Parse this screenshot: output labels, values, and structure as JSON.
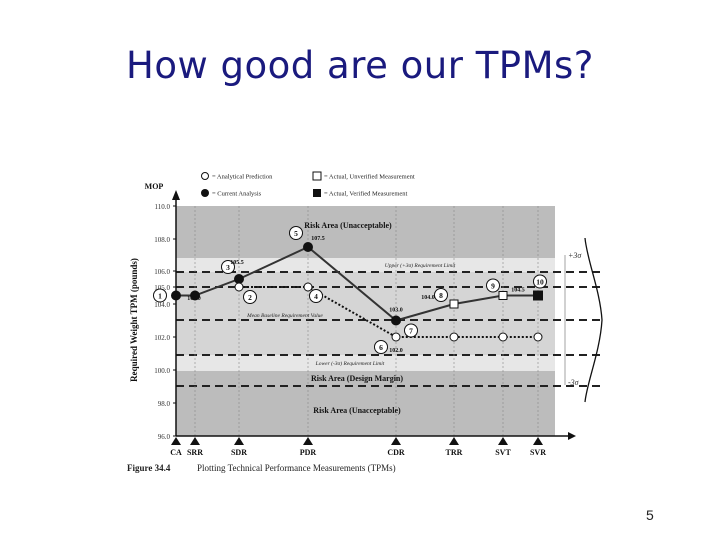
{
  "slide": {
    "title": "How good are our TPMs?",
    "page_number": "5"
  },
  "chart_data": {
    "type": "line",
    "figure_number": "Figure 34.4",
    "figure_caption": "Plotting Technical Performance Measurements (TPMs)",
    "ylabel": "Required Weight TPM (pounds)",
    "y_axis_header": "MOP",
    "ylim": [
      96.0,
      110.0
    ],
    "y_ticks": [
      "96.0",
      "98.0",
      "100.0",
      "102.0",
      "104.0",
      "105.0",
      "106.0",
      "108.0",
      "110.0"
    ],
    "categories": [
      "CA",
      "SRR",
      "SDR",
      "PDR",
      "CDR",
      "TRR",
      "SVT",
      "SVR"
    ],
    "legend": [
      {
        "label": "= Analytical Prediction",
        "marker": "open-circle"
      },
      {
        "label": "= Current Analysis",
        "marker": "filled-circle"
      },
      {
        "label": "= Actual, Unverified Measurement",
        "marker": "open-square"
      },
      {
        "label": "= Actual, Verified Measurement",
        "marker": "filled-square"
      }
    ],
    "bands": {
      "risk_unacceptable_top": "Risk Area (Unacceptable)",
      "risk_design_margin": "Risk Area (Design Margin)",
      "risk_unacceptable_bottom": "Risk Area (Unacceptable)",
      "upper_limit": "Upper (+3σ) Requirement Limit",
      "lower_limit": "Lower (-3σ) Requirement Limit",
      "mean_value": "Mean Baseline Requirement Value"
    },
    "sigma_labels": {
      "upper": "+3σ",
      "lower": "-3σ"
    },
    "series": [
      {
        "name": "Current Analysis",
        "marker": "filled-circle",
        "style": "solid",
        "points": [
          {
            "x": "CA",
            "y": 104.5,
            "id": "1"
          },
          {
            "x": "SRR",
            "y": 104.5
          },
          {
            "x": "SDR",
            "y": 105.5,
            "id": "3",
            "label": "105.5"
          },
          {
            "x": "PDR",
            "y": 107.5,
            "id": "5",
            "label": "107.5"
          },
          {
            "x": "CDR",
            "y": 103.0,
            "label": "103.0"
          }
        ]
      },
      {
        "name": "Analytical Prediction",
        "marker": "open-circle",
        "style": "dotted",
        "points": [
          {
            "x": "SDR",
            "y": 105.0,
            "id": "2",
            "label": "105.0"
          },
          {
            "x": "PDR",
            "y": 105.0,
            "id": "4"
          },
          {
            "x": "CDR",
            "y": 102.0,
            "id": "6",
            "label": "102.0"
          },
          {
            "x": "TRR",
            "y": 102.0
          },
          {
            "x": "SVT",
            "y": 102.0
          },
          {
            "x": "SVR",
            "y": 102.0
          }
        ]
      },
      {
        "name": "Actual Measurement",
        "marker": "square",
        "style": "solid",
        "points": [
          {
            "x": "CDR",
            "y": 103.0,
            "id": "7"
          },
          {
            "x": "TRR",
            "y": 104.0,
            "id": "8",
            "label": "104.0",
            "marker": "open-square"
          },
          {
            "x": "SVT",
            "y": 104.5,
            "id": "9",
            "marker": "open-square"
          },
          {
            "x": "SVR",
            "y": 104.5,
            "id": "10",
            "label": "104.5",
            "marker": "filled-square"
          }
        ]
      }
    ],
    "colors": {
      "risk_dark": "#bcbcbc",
      "band_light": "#e7e7e7",
      "plot_bg": "#d5d5d5"
    }
  }
}
